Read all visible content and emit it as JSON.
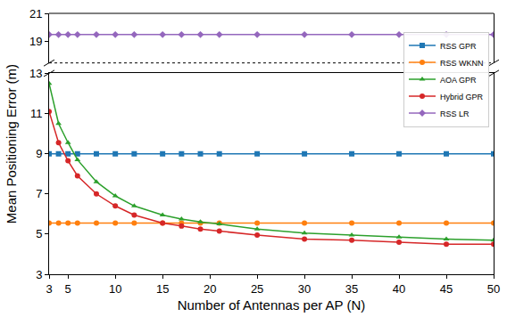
{
  "chart_data": {
    "type": "line",
    "x_label": "Number of Antennas per AP (N)",
    "y_label": "Mean Positioning Error (m)",
    "x": [
      3,
      4,
      5,
      6,
      8,
      10,
      12,
      15,
      17,
      19,
      21,
      25,
      30,
      35,
      40,
      45,
      50
    ],
    "series": [
      {
        "name": "RSS GPR",
        "color": "#1f77b4",
        "marker": "square",
        "values": [
          9.0,
          9.0,
          9.0,
          9.0,
          9.0,
          9.0,
          9.0,
          9.0,
          9.0,
          9.0,
          9.0,
          9.0,
          9.0,
          9.0,
          9.0,
          9.0,
          9.0
        ]
      },
      {
        "name": "RSS WKNN",
        "color": "#ff7f0e",
        "marker": "circle",
        "values": [
          5.55,
          5.55,
          5.55,
          5.55,
          5.55,
          5.55,
          5.55,
          5.55,
          5.55,
          5.55,
          5.55,
          5.55,
          5.55,
          5.55,
          5.55,
          5.55,
          5.55
        ]
      },
      {
        "name": "AOA GPR",
        "color": "#2ca02c",
        "marker": "triangle-up",
        "values": [
          12.5,
          10.5,
          9.55,
          8.7,
          7.6,
          6.9,
          6.4,
          5.95,
          5.75,
          5.6,
          5.5,
          5.25,
          5.05,
          4.95,
          4.85,
          4.75,
          4.7
        ]
      },
      {
        "name": "Hybrid GPR",
        "color": "#d62728",
        "marker": "circle",
        "values": [
          11.1,
          9.55,
          8.65,
          7.9,
          7.0,
          6.4,
          5.95,
          5.55,
          5.4,
          5.25,
          5.15,
          4.95,
          4.75,
          4.7,
          4.6,
          4.5,
          4.5
        ]
      },
      {
        "name": "RSS LR",
        "color": "#9467bd",
        "marker": "diamond",
        "axis": "y2",
        "values": [
          19.5,
          19.5,
          19.5,
          19.5,
          19.5,
          19.5,
          19.5,
          19.5,
          19.5,
          19.5,
          19.5,
          19.5,
          19.5,
          19.5,
          19.5,
          19.5,
          19.5
        ]
      }
    ],
    "xlim": [
      3,
      50
    ],
    "xticks": [
      3,
      5,
      10,
      15,
      20,
      25,
      30,
      35,
      40,
      45,
      50
    ],
    "ylim": [
      3,
      13
    ],
    "yticks": [
      3,
      5,
      7,
      9,
      11,
      13
    ],
    "y2lim": [
      17.5,
      21
    ],
    "y2ticks": [
      19,
      21
    ],
    "grid": false,
    "legend": "upper right"
  }
}
